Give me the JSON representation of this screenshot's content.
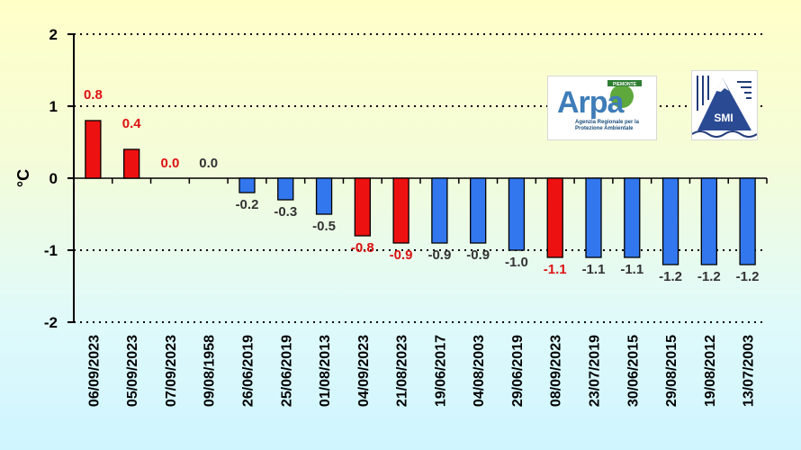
{
  "chart_data": {
    "type": "bar",
    "title": "",
    "xlabel": "",
    "ylabel": "°C",
    "ylim": [
      -2,
      2
    ],
    "yticks": [
      2,
      1,
      0,
      -1,
      -2
    ],
    "grid": "dotted horizontal",
    "categories": [
      "06/09/2023",
      "05/09/2023",
      "07/09/2023",
      "09/08/1958",
      "26/06/2019",
      "25/06/2019",
      "01/08/2013",
      "04/09/2023",
      "21/08/2023",
      "19/06/2017",
      "04/08/2003",
      "29/06/2019",
      "08/09/2023",
      "23/07/2019",
      "30/06/2015",
      "29/08/2015",
      "19/08/2012",
      "13/07/2003"
    ],
    "values": [
      0.8,
      0.4,
      0.0,
      0.0,
      -0.2,
      -0.3,
      -0.5,
      -0.8,
      -0.9,
      -0.9,
      -0.9,
      -1.0,
      -1.1,
      -1.1,
      -1.1,
      -1.2,
      -1.2,
      -1.2
    ],
    "labels": [
      "0.8",
      "0.4",
      "0.0",
      "0.0",
      "-0.2",
      "-0.3",
      "-0.5",
      "-0.8",
      "-0.9",
      "-0.9",
      "-0.9",
      "-1.0",
      "-1.1",
      "-1.1",
      "-1.1",
      "-1.2",
      "-1.2",
      "-1.2"
    ],
    "highlight": [
      true,
      true,
      true,
      false,
      false,
      false,
      false,
      true,
      true,
      false,
      false,
      false,
      true,
      false,
      false,
      false,
      false,
      false
    ],
    "colors": {
      "highlight_bar": "#EE1111",
      "normal_bar": "#3377EE",
      "highlight_label": "#DD1111",
      "normal_label": "#333333"
    }
  },
  "logos": {
    "arpa": {
      "text": "Arpa",
      "top_text": "PIEMONTE",
      "subtext": "Agenzia Regionale per la Protezione Ambientale"
    },
    "smi": {
      "text": "SMI"
    }
  }
}
